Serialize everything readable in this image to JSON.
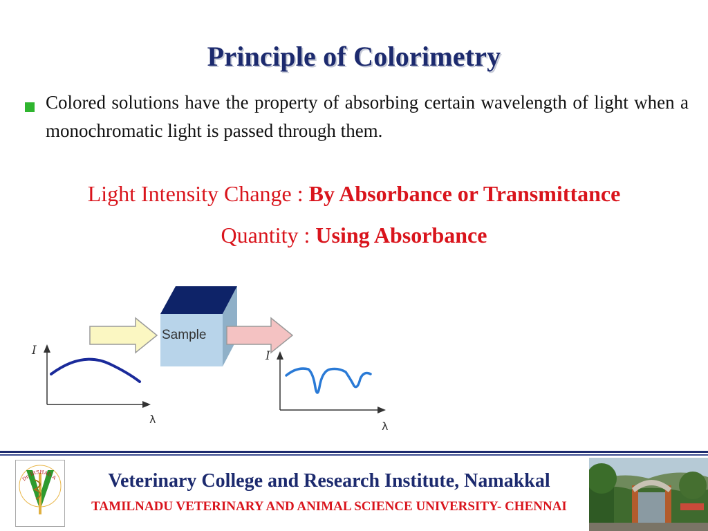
{
  "slide": {
    "title": "Principle of Colorimetry",
    "bullet_text": "Colored solutions have the property of absorbing certain wavelength of light when a monochromatic light is passed through them.",
    "line1_prefix": "Light Intensity Change : ",
    "line1_bold": "By Absorbance or Transmittance",
    "line2_prefix": "Quantity : ",
    "line2_bold": "Using Absorbance"
  },
  "diagram": {
    "sample_label": "Sample",
    "axis_y_label": "I",
    "axis_x_label": "λ"
  },
  "footer": {
    "institute": "Veterinary College and Research Institute, Namakkal",
    "university": "TAMILNADU VETERINARY AND ANIMAL SCIENCE UNIVERSITY- CHENNAI",
    "logo_text": "Dr. IRSHAD A"
  },
  "colors": {
    "title": "#1c2a6e",
    "accent_red": "#d9141c",
    "bullet_green": "#2fb52f",
    "curve_blue": "#1a2a9a",
    "spectrum_blue": "#2a7ad6"
  }
}
